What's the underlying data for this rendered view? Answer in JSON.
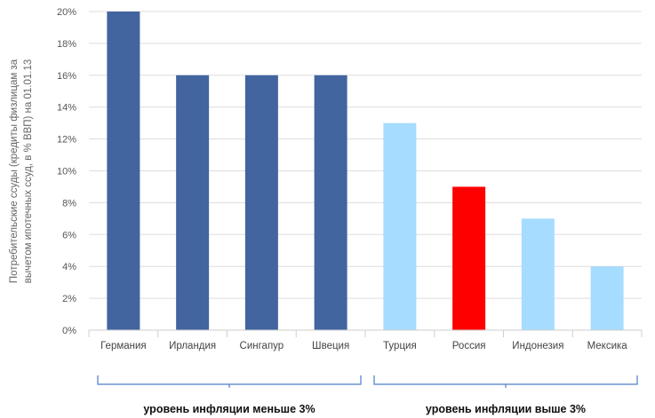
{
  "chart_data": {
    "type": "bar",
    "title": "",
    "ylabel_lines": [
      "Потребительские ссуды (кредиты физлицам за",
      "вычетом ипотечных ссуд, в % ВВП) на 01.01.13"
    ],
    "xlabel": "",
    "ylim": [
      0,
      20
    ],
    "yticks": [
      0,
      2,
      4,
      6,
      8,
      10,
      12,
      14,
      16,
      18,
      20
    ],
    "ytick_labels": [
      "0%",
      "2%",
      "4%",
      "6%",
      "8%",
      "10%",
      "12%",
      "14%",
      "16%",
      "18%",
      "20%"
    ],
    "grid": true,
    "categories": [
      "Германия",
      "Ирландия",
      "Сингапур",
      "Швеция",
      "Турция",
      "Россия",
      "Индонезия",
      "Мексика"
    ],
    "values": [
      20,
      16,
      16,
      16,
      13,
      9,
      7,
      4
    ],
    "bar_colors": [
      "#42649f",
      "#42649f",
      "#42649f",
      "#42649f",
      "#a6dcff",
      "#ff0000",
      "#a6dcff",
      "#a6dcff"
    ],
    "groups": [
      {
        "label": "уровень инфляции меньше 3%",
        "from": 0,
        "to": 3
      },
      {
        "label": "уровень инфляции выше 3%",
        "from": 4,
        "to": 7
      }
    ]
  },
  "colors": {
    "low_inflation": "#42649f",
    "high_inflation": "#a6dcff",
    "russia": "#ff0000",
    "brace": "#4a7fc8"
  }
}
